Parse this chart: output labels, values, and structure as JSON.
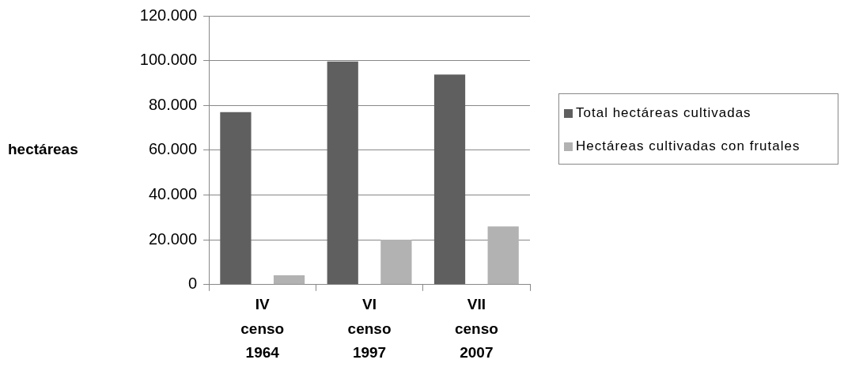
{
  "chart_data": {
    "type": "bar",
    "ylabel": "hectáreas",
    "categories": [
      "IV censo 1964",
      "VI censo 1997",
      "VII censo 2007"
    ],
    "series": [
      {
        "name": "Total hectáreas cultivadas",
        "color": "#5f5f5f",
        "values": [
          77000,
          99600,
          93800
        ]
      },
      {
        "name": "Hectáreas cultivadas con frutales",
        "color": "#b2b2b2",
        "values": [
          4200,
          20100,
          26000
        ]
      }
    ],
    "ylim": [
      0,
      120000
    ],
    "yticks": [
      0,
      {
        "value": 20000,
        "label": "20.000"
      },
      {
        "value": 40000,
        "label": "40.000"
      },
      {
        "value": 60000,
        "label": "60.000"
      },
      {
        "value": 80000,
        "label": "80.000"
      },
      {
        "value": 100000,
        "label": "100.000"
      },
      {
        "value": 120000,
        "label": "120.000"
      }
    ],
    "grid": "y",
    "legend": "right"
  }
}
